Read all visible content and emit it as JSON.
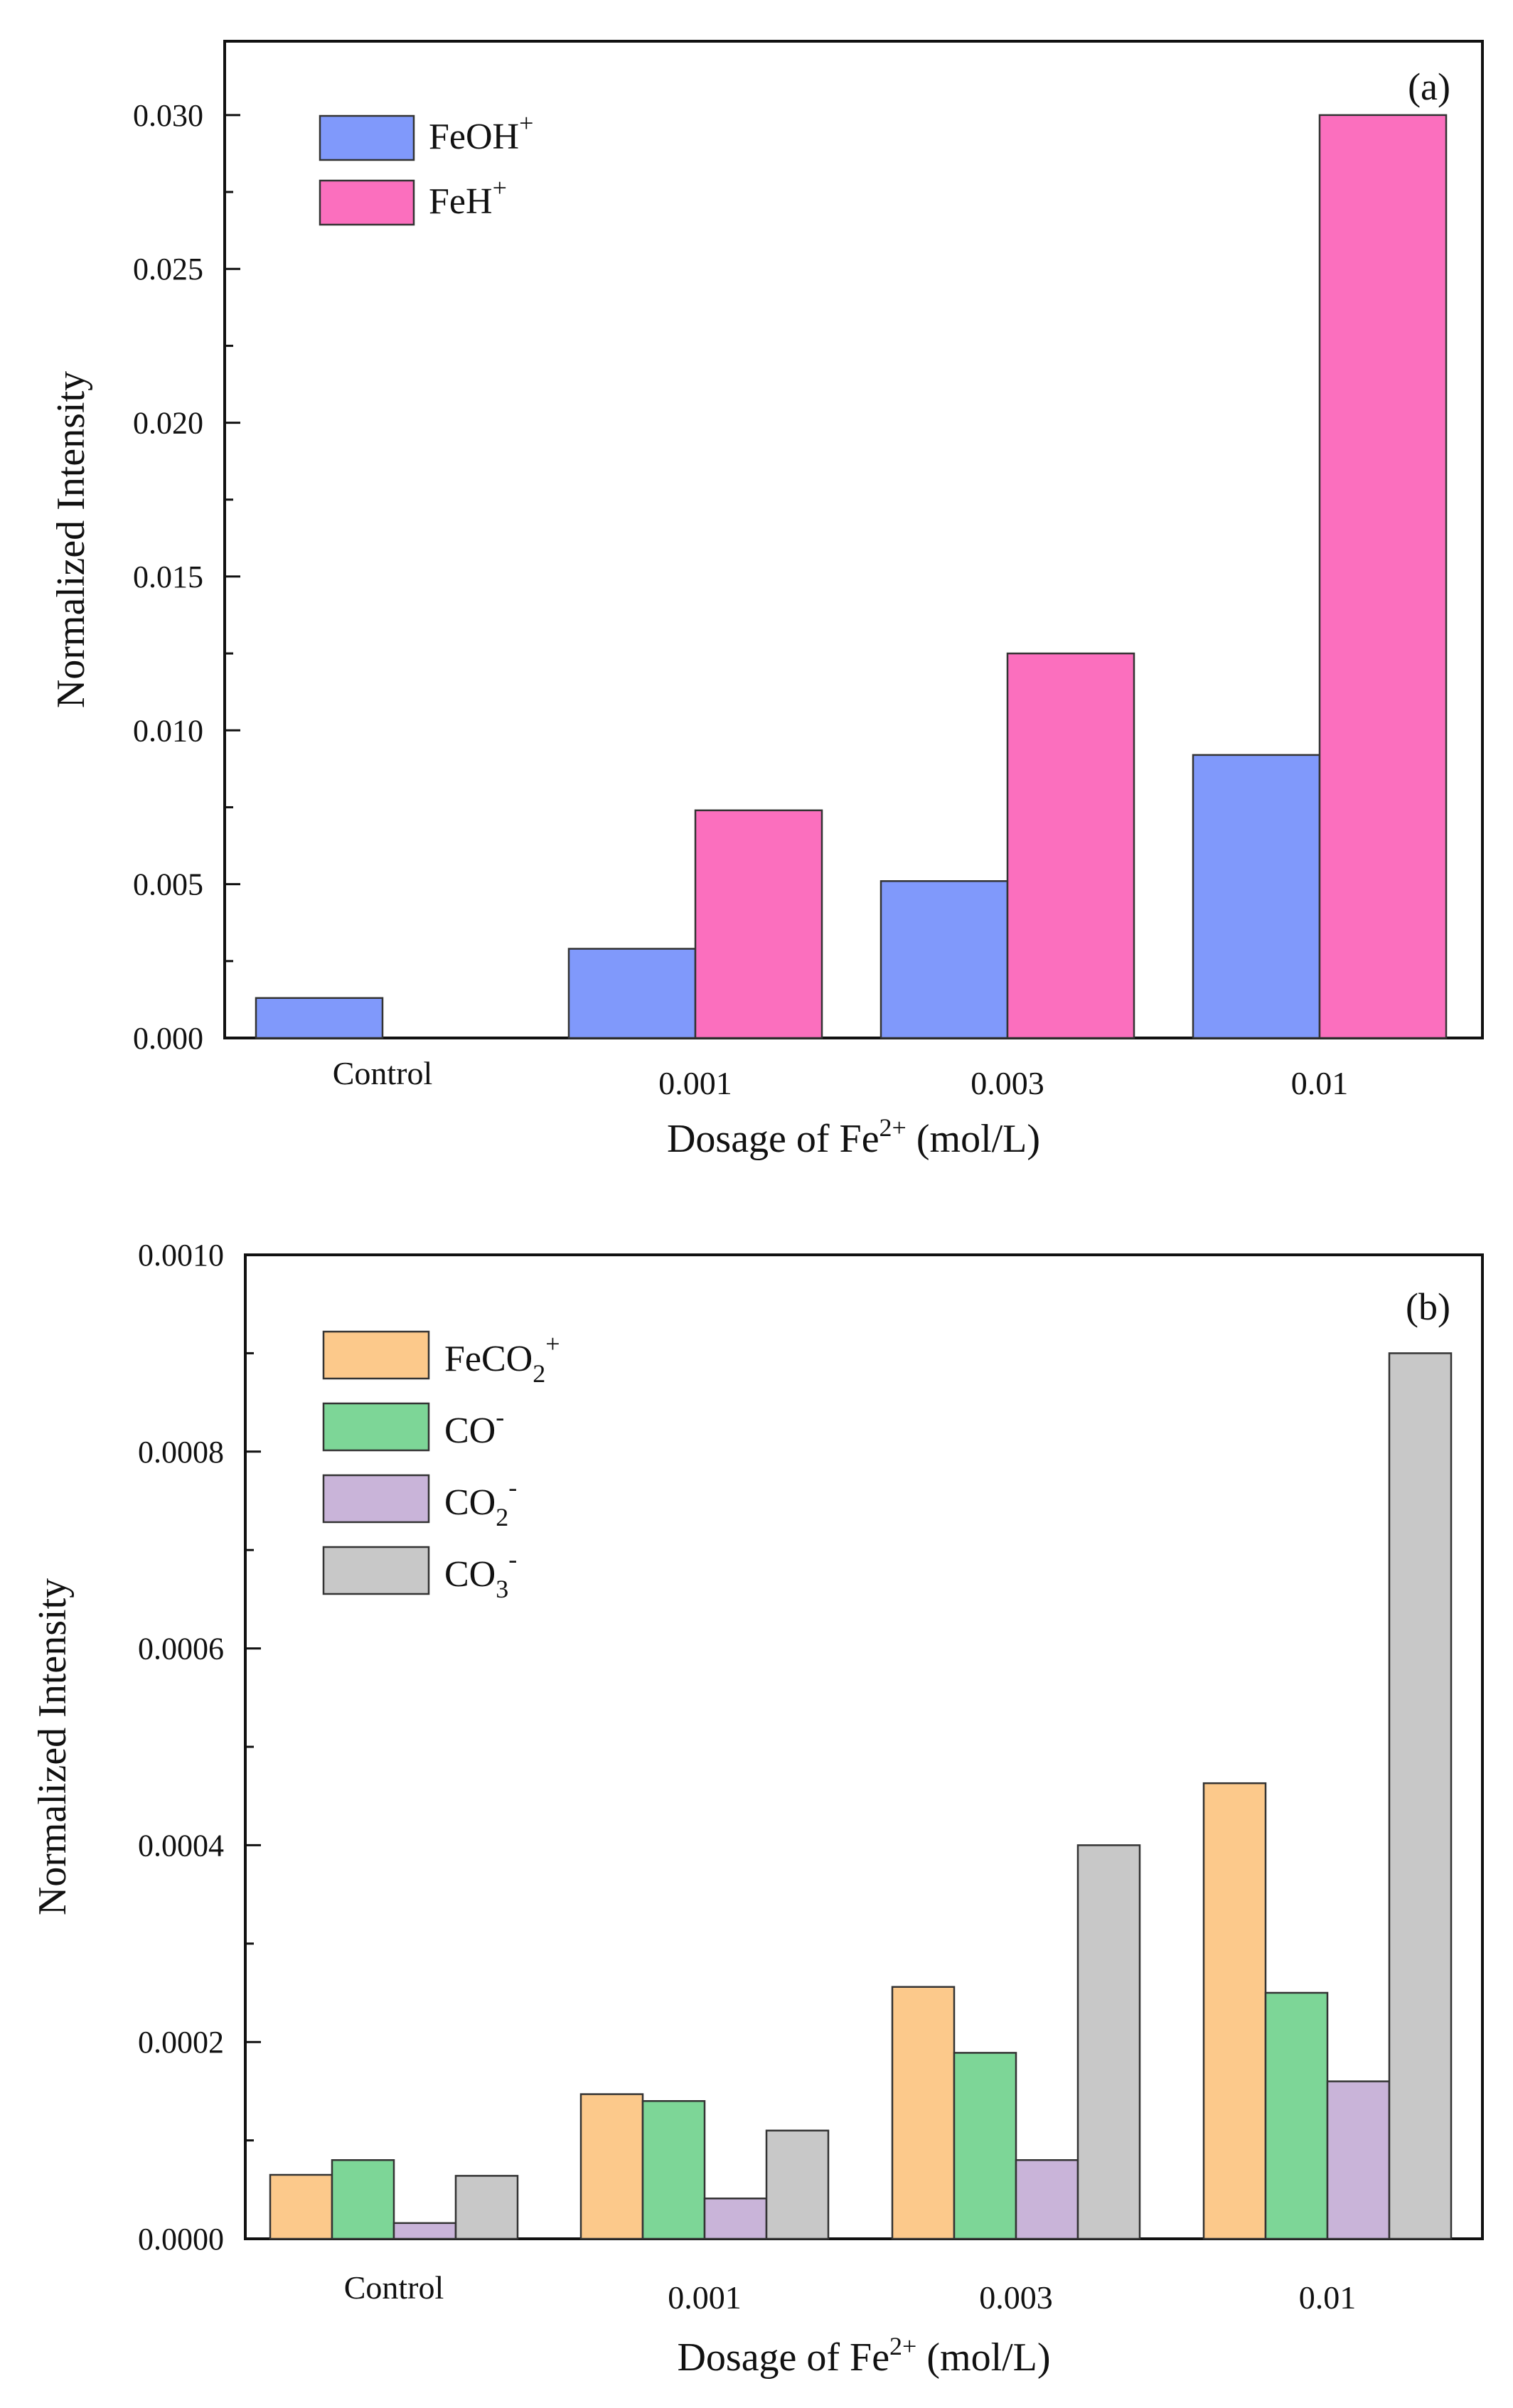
{
  "chart_data": [
    {
      "type": "bar",
      "panel_label": "(a)",
      "categories": [
        "Control",
        "0.001",
        "0.003",
        "0.01"
      ],
      "series": [
        {
          "name": "FeOH",
          "sup": "+",
          "color": "#8099fb",
          "values": [
            0.0013,
            0.0029,
            0.0051,
            0.0092
          ]
        },
        {
          "name": "FeH",
          "sup": "+",
          "color": "#fb6fbe",
          "values": [
            0,
            0.0074,
            0.0125,
            0.03
          ]
        }
      ],
      "ylabel": "Normalized Intensity",
      "xlabel": {
        "pre": "Dosage of Fe",
        "sup": "2+",
        "post": " (mol/L)"
      },
      "ylim": [
        0,
        0.0324
      ],
      "yticks": [
        "0.000",
        "0.005",
        "0.010",
        "0.015",
        "0.020",
        "0.025",
        "0.030"
      ],
      "ytick_values": [
        0,
        0.005,
        0.01,
        0.015,
        0.02,
        0.025,
        0.03
      ],
      "legend_position": "top-left",
      "grid": false
    },
    {
      "type": "bar",
      "panel_label": "(b)",
      "categories": [
        "Control",
        "0.001",
        "0.003",
        "0.01"
      ],
      "series": [
        {
          "name": "FeCO",
          "sub": "2",
          "sup": "+",
          "color": "#fcc98b",
          "values": [
            6.5e-05,
            0.000147,
            0.000256,
            0.000463
          ]
        },
        {
          "name": "CO",
          "sub": "",
          "sup": "-",
          "color": "#7dd697",
          "values": [
            8e-05,
            0.00014,
            0.000189,
            0.00025
          ]
        },
        {
          "name": "CO",
          "sub": "2",
          "sup": "-",
          "color": "#c9b4d9",
          "values": [
            1.6e-05,
            4.1e-05,
            8e-05,
            0.00016
          ]
        },
        {
          "name": "CO",
          "sub": "3",
          "sup": "-",
          "color": "#c8c8c8",
          "values": [
            6.4e-05,
            0.00011,
            0.0004,
            0.0009
          ]
        }
      ],
      "ylabel": "Normalized Intensity",
      "xlabel": {
        "pre": "Dosage of Fe",
        "sup": "2+",
        "post": " (mol/L)"
      },
      "ylim": [
        0,
        0.001
      ],
      "yticks": [
        "0.0000",
        "0.0002",
        "0.0004",
        "0.0006",
        "0.0008",
        "0.0010"
      ],
      "ytick_values": [
        0,
        0.0002,
        0.0004,
        0.0006,
        0.0008,
        0.001
      ],
      "legend_position": "top-left",
      "grid": false
    }
  ]
}
